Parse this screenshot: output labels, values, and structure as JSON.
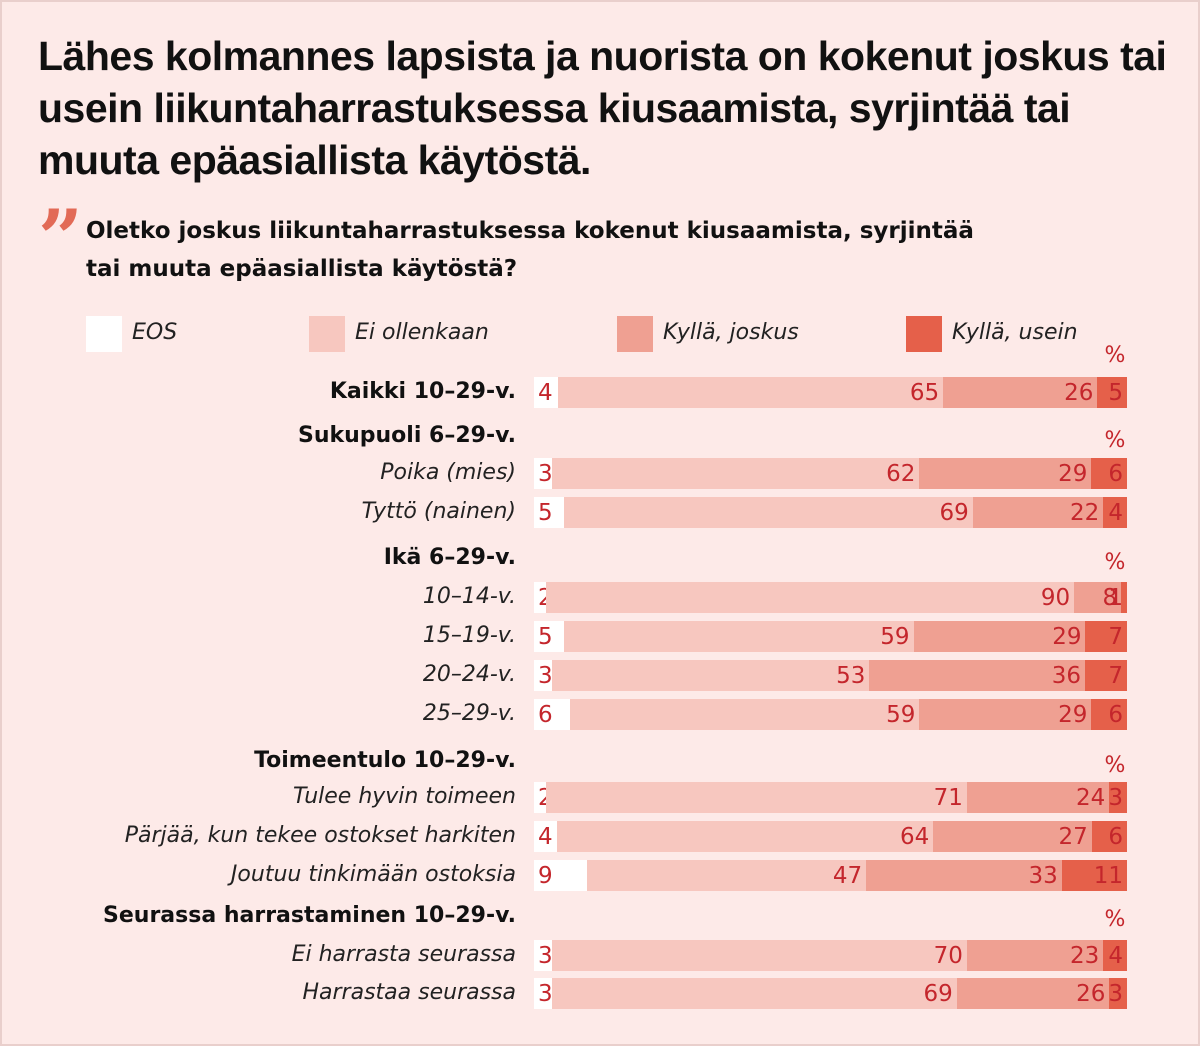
{
  "title": "Lähes kolmannes lapsista ja nuorista on kokenut joskus tai usein liikuntaharrastuksessa kiusaamista, syrjintää tai muuta epäasiallista käytöstä.",
  "question": "Oletko joskus liikuntaharrastuksessa kokenut kiusaamista, syrjintää tai muuta epäasiallista käytöstä?",
  "quote_symbol": "”",
  "colors": {
    "background": "#fdeae8",
    "eos": "#ffffff",
    "ei": "#f7c7bf",
    "joskus": "#efa092",
    "usein": "#e5604a",
    "value_text": "#c4262c",
    "accent": "#e26a56"
  },
  "chart_data": {
    "type": "bar",
    "orientation": "horizontal-stacked-100",
    "unit": "%",
    "legend": [
      "EOS",
      "Ei ollenkaan",
      "Kyllä, joskus",
      "Kyllä, usein"
    ],
    "groups": [
      {
        "title": "",
        "rows": [
          {
            "label": "Kaikki 10–29-v.",
            "values": [
              4,
              65,
              26,
              5
            ]
          }
        ]
      },
      {
        "title": "Sukupuoli 6–29-v.",
        "rows": [
          {
            "label": "Poika (mies)",
            "values": [
              3,
              62,
              29,
              6
            ]
          },
          {
            "label": "Tyttö (nainen)",
            "values": [
              5,
              69,
              22,
              4
            ]
          }
        ]
      },
      {
        "title": "Ikä 6–29-v.",
        "rows": [
          {
            "label": "10–14-v.",
            "values": [
              2,
              90,
              8,
              1
            ]
          },
          {
            "label": "15–19-v.",
            "values": [
              5,
              59,
              29,
              7
            ]
          },
          {
            "label": "20–24-v.",
            "values": [
              3,
              53,
              36,
              7
            ]
          },
          {
            "label": "25–29-v.",
            "values": [
              6,
              59,
              29,
              6
            ]
          }
        ]
      },
      {
        "title": "Toimeentulo 10–29-v.",
        "rows": [
          {
            "label": "Tulee hyvin toimeen",
            "values": [
              2,
              71,
              24,
              3
            ]
          },
          {
            "label": "Pärjää, kun tekee ostokset harkiten",
            "values": [
              4,
              64,
              27,
              6
            ]
          },
          {
            "label": "Joutuu tinkimään ostoksia",
            "values": [
              9,
              47,
              33,
              11
            ]
          }
        ]
      },
      {
        "title": "Seurassa harrastaminen 10–29-v.",
        "rows": [
          {
            "label": "Ei harrasta seurassa",
            "values": [
              3,
              70,
              23,
              4
            ]
          },
          {
            "label": "Harrastaa seurassa",
            "values": [
              3,
              69,
              26,
              3
            ]
          }
        ]
      }
    ]
  }
}
